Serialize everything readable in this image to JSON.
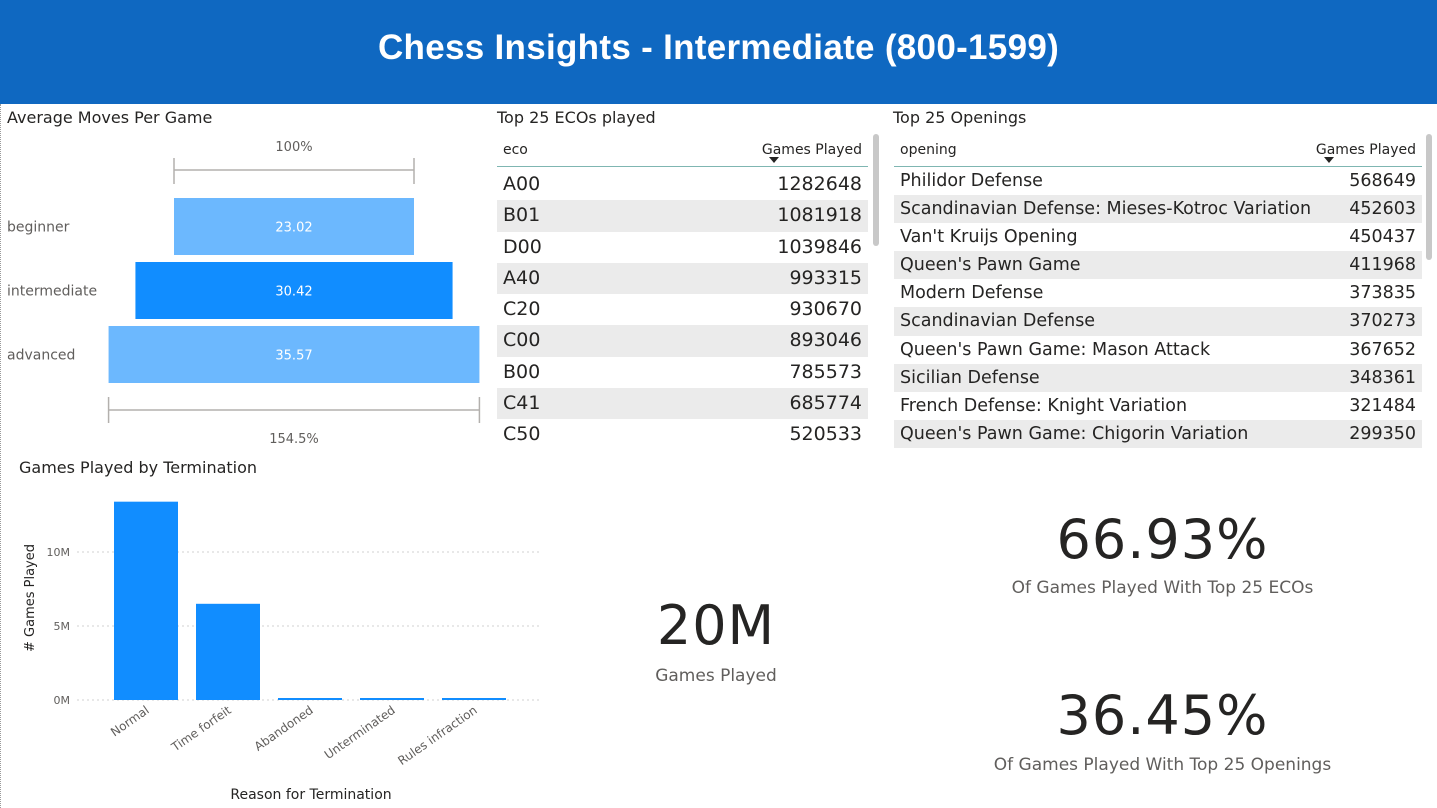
{
  "header": {
    "title": "Chess Insights - Intermediate (800-1599)"
  },
  "avg_moves": {
    "title": "Average Moves Per Game",
    "top_percent": "100%",
    "bottom_percent": "154.5%",
    "chart_data": {
      "type": "bar",
      "categories": [
        "beginner",
        "intermediate",
        "advanced"
      ],
      "values": [
        23.02,
        30.42,
        35.57
      ],
      "value_labels": [
        "23.02",
        "30.42",
        "35.57"
      ],
      "colors": [
        "#6cb8fe",
        "#118dff",
        "#6cb8fe"
      ]
    }
  },
  "eco_table": {
    "title": "Top 25 ECOs played",
    "col1": "eco",
    "col2": "Games Played",
    "rows": [
      [
        "A00",
        "1282648"
      ],
      [
        "B01",
        "1081918"
      ],
      [
        "D00",
        "1039846"
      ],
      [
        "A40",
        "993315"
      ],
      [
        "C20",
        "930670"
      ],
      [
        "C00",
        "893046"
      ],
      [
        "B00",
        "785573"
      ],
      [
        "C41",
        "685774"
      ],
      [
        "C50",
        "520533"
      ]
    ]
  },
  "openings_table": {
    "title": "Top 25 Openings",
    "col1": "opening",
    "col2": "Games Played",
    "rows": [
      [
        "Philidor Defense",
        "568649"
      ],
      [
        "Scandinavian Defense: Mieses-Kotroc Variation",
        "452603"
      ],
      [
        "Van't Kruijs Opening",
        "450437"
      ],
      [
        "Queen's Pawn Game",
        "411968"
      ],
      [
        "Modern Defense",
        "373835"
      ],
      [
        "Scandinavian Defense",
        "370273"
      ],
      [
        "Queen's Pawn Game: Mason Attack",
        "367652"
      ],
      [
        "Sicilian Defense",
        "348361"
      ],
      [
        "French Defense: Knight Variation",
        "321484"
      ],
      [
        "Queen's Pawn Game: Chigorin Variation",
        "299350"
      ]
    ]
  },
  "termination": {
    "title": "Games Played by Termination",
    "chart_data": {
      "type": "bar",
      "xlabel": "Reason for Termination",
      "ylabel": "# Games Played",
      "categories": [
        "Normal",
        "Time forfeit",
        "Abandoned",
        "Unterminated",
        "Rules infraction"
      ],
      "values": [
        13400000,
        6500000,
        60000,
        60000,
        60000
      ],
      "yticks": [
        0,
        5000000,
        10000000
      ],
      "ytick_labels": [
        "0M",
        "5M",
        "10M"
      ],
      "ylim": [
        0,
        13500000
      ],
      "color": "#118dff",
      "grid": true
    }
  },
  "kpis": {
    "games_played": {
      "value": "20M",
      "label": "Games Played"
    },
    "top_eco_pct": {
      "value": "66.93%",
      "label": "Of Games Played With Top 25 ECOs"
    },
    "top_openings_pct": {
      "value": "36.45%",
      "label": "Of Games Played With Top 25 Openings"
    }
  }
}
